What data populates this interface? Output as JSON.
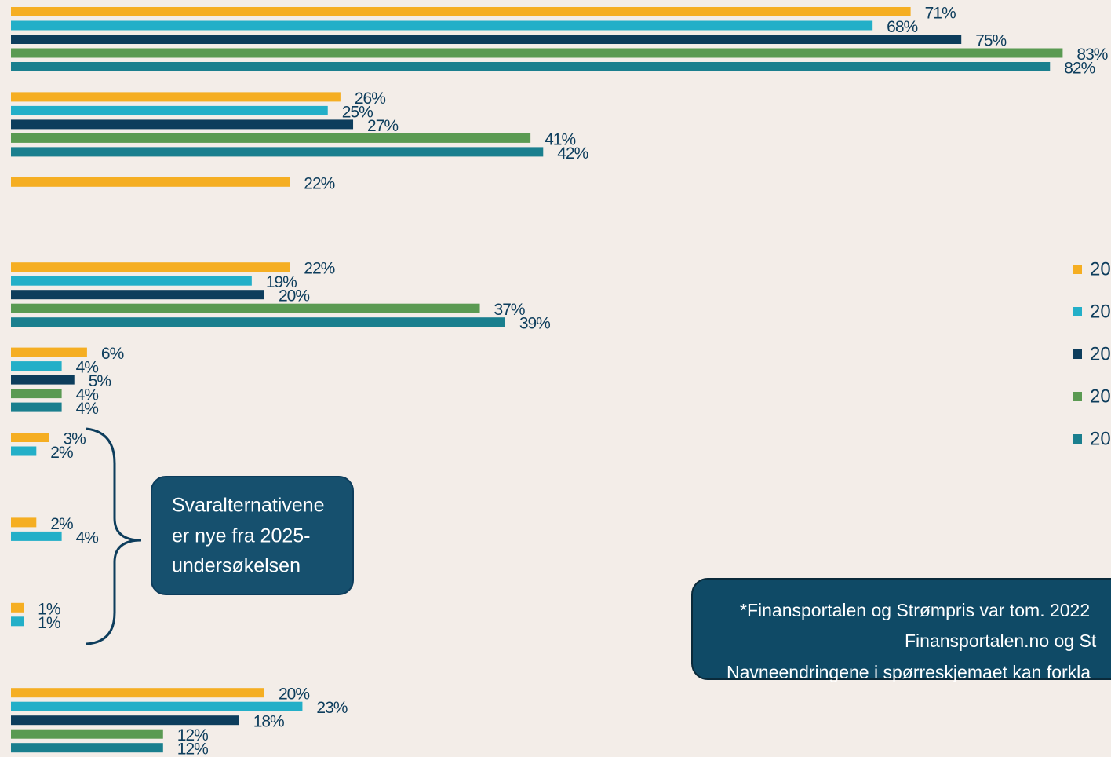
{
  "chart_data": {
    "type": "bar",
    "orientation": "horizontal",
    "xlim": [
      0,
      87
    ],
    "series": [
      {
        "name": "20",
        "color": "#f5ae22",
        "values": [
          71,
          26,
          22,
          22,
          6,
          3,
          2,
          1,
          20
        ],
        "value_labels": [
          "71%",
          "26%",
          "22%",
          "22%",
          "6%",
          "3%",
          "2%",
          "1%",
          "20%"
        ]
      },
      {
        "name": "20",
        "color": "#23afc8",
        "values": [
          68,
          25,
          null,
          19,
          4,
          2,
          4,
          1,
          23
        ],
        "value_labels": [
          "68%",
          "25%",
          null,
          "19%",
          "4%",
          "2%",
          "4%",
          "1%",
          "23%"
        ]
      },
      {
        "name": "20",
        "color": "#0d3d5c",
        "values": [
          75,
          27,
          null,
          20,
          5,
          null,
          null,
          null,
          18
        ],
        "value_labels": [
          "75%",
          "27%",
          null,
          "20%",
          "5%",
          null,
          null,
          null,
          "18%"
        ]
      },
      {
        "name": "20",
        "color": "#5a9a52",
        "values": [
          83,
          41,
          null,
          37,
          4,
          null,
          null,
          null,
          12
        ],
        "value_labels": [
          "83%",
          "41%",
          null,
          "37%",
          "4%",
          null,
          null,
          null,
          "12%"
        ]
      },
      {
        "name": "20",
        "color": "#1a7f8e",
        "values": [
          82,
          42,
          null,
          39,
          4,
          null,
          null,
          null,
          12
        ],
        "value_labels": [
          "82%",
          "42%",
          null,
          "39%",
          "4%",
          null,
          null,
          null,
          "12%"
        ]
      }
    ],
    "annotations": [
      {
        "lines": [
          "Svaralternativene",
          "er nye fra 2025-",
          "undersøkelsen"
        ]
      },
      {
        "lines": [
          "*Finansportalen og Strømpris var tom. 2022",
          "Finansportalen.no  og St",
          "Navneendringene i spørreskjemaet kan forkla"
        ]
      }
    ]
  }
}
